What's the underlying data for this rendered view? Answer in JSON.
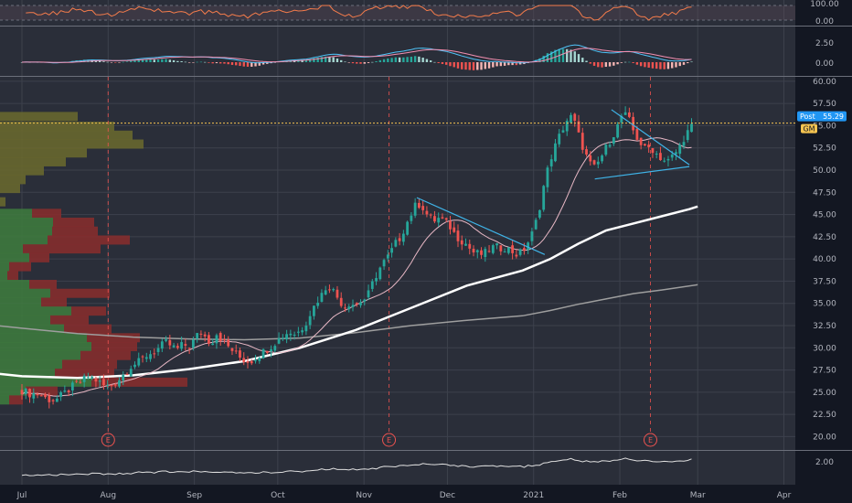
{
  "chart_data": {
    "type": "candlestick",
    "symbol": "GM",
    "colors": {
      "background": "#2a2e39",
      "grid": "#3d414c",
      "up": "#26a69a",
      "down": "#ef5350",
      "sma50": "#e8b8c5",
      "sma100": "#ffffff",
      "sma200": "#9e9e9e",
      "trendline": "#3fb4e8",
      "price_line": "#f5c451",
      "rsi": "#f57c4b",
      "macd": "#4fc3f7",
      "signal": "#f48fb1",
      "vp_up_lower": "#3e7c3e",
      "vp_down_lower": "#8a2d2d",
      "vp_up_upper": "#2a4f8c",
      "vp_down_upper": "#6b6a2e"
    },
    "price_axis": {
      "ticks": [
        "57.50",
        "55.00",
        "52.50",
        "50.00",
        "47.50",
        "45.00",
        "42.50",
        "40.00",
        "37.50",
        "35.00",
        "32.50",
        "30.00",
        "27.50",
        "25.00",
        "22.50",
        "20.00"
      ],
      "top_label": "60.00",
      "range": [
        18.5,
        60.5
      ]
    },
    "x_axis": {
      "labels": [
        "Jul",
        "Aug",
        "Sep",
        "Oct",
        "Nov",
        "Dec",
        "2021",
        "Feb",
        "Mar",
        "Apr"
      ],
      "positions_days": [
        0,
        31,
        62,
        92,
        123,
        153,
        184,
        215,
        243,
        274
      ]
    },
    "last_price": {
      "label": "Post",
      "value": "55.29",
      "symbol_tag": "GM"
    },
    "earnings_markers": [
      {
        "label": "E",
        "day": 31
      },
      {
        "label": "E",
        "day": 132
      },
      {
        "label": "E",
        "day": 226
      }
    ],
    "rsi_panel": {
      "ticks": [
        "100.00",
        "0.00"
      ]
    },
    "macd_panel": {
      "ticks": [
        "2.50",
        "0.00"
      ]
    },
    "bottom_panel": {
      "ticks": [
        "2.00"
      ]
    },
    "price_path": [
      [
        0,
        25.2
      ],
      [
        3,
        24.8
      ],
      [
        6,
        24.9
      ],
      [
        9,
        24.2
      ],
      [
        12,
        24.1
      ],
      [
        15,
        24.8
      ],
      [
        18,
        25.6
      ],
      [
        21,
        26.2
      ],
      [
        24,
        26.8
      ],
      [
        27,
        26.3
      ],
      [
        30,
        25.6
      ],
      [
        33,
        25.9
      ],
      [
        36,
        26.8
      ],
      [
        39,
        27.9
      ],
      [
        42,
        28.4
      ],
      [
        45,
        29.2
      ],
      [
        48,
        29.6
      ],
      [
        50,
        30.2
      ],
      [
        52,
        30.6
      ],
      [
        54,
        30.1
      ],
      [
        56,
        29.9
      ],
      [
        58,
        30.4
      ],
      [
        60,
        30.1
      ],
      [
        62,
        30.9
      ],
      [
        64,
        31.9
      ],
      [
        66,
        31.2
      ],
      [
        68,
        30.5
      ],
      [
        70,
        31.6
      ],
      [
        72,
        30.9
      ],
      [
        74,
        30.2
      ],
      [
        76,
        29.6
      ],
      [
        78,
        29.0
      ],
      [
        80,
        28.6
      ],
      [
        82,
        28.4
      ],
      [
        84,
        28.9
      ],
      [
        86,
        29.4
      ],
      [
        88,
        29.8
      ],
      [
        90,
        30.3
      ],
      [
        92,
        30.9
      ],
      [
        94,
        31.4
      ],
      [
        96,
        31.8
      ],
      [
        98,
        31.6
      ],
      [
        100,
        31.9
      ],
      [
        102,
        32.8
      ],
      [
        104,
        34.1
      ],
      [
        106,
        35.2
      ],
      [
        108,
        36.1
      ],
      [
        110,
        37.2
      ],
      [
        112,
        36.4
      ],
      [
        114,
        35.4
      ],
      [
        116,
        34.6
      ],
      [
        118,
        35.1
      ],
      [
        120,
        34.8
      ],
      [
        122,
        35.3
      ],
      [
        124,
        35.6
      ],
      [
        126,
        37.2
      ],
      [
        128,
        38.6
      ],
      [
        130,
        39.6
      ],
      [
        132,
        40.4
      ],
      [
        134,
        41.6
      ],
      [
        136,
        42.4
      ],
      [
        138,
        43.8
      ],
      [
        140,
        45.1
      ],
      [
        142,
        46.3
      ],
      [
        144,
        45.9
      ],
      [
        146,
        44.8
      ],
      [
        148,
        44.3
      ],
      [
        150,
        44.6
      ],
      [
        152,
        44.2
      ],
      [
        154,
        43.6
      ],
      [
        156,
        42.6
      ],
      [
        158,
        42.1
      ],
      [
        160,
        41.6
      ],
      [
        162,
        40.8
      ],
      [
        164,
        40.6
      ],
      [
        166,
        40.5
      ],
      [
        168,
        41.1
      ],
      [
        170,
        41.4
      ],
      [
        172,
        41.2
      ],
      [
        174,
        41.3
      ],
      [
        176,
        40.9
      ],
      [
        178,
        40.5
      ],
      [
        180,
        40.8
      ],
      [
        182,
        41.9
      ],
      [
        184,
        43.2
      ],
      [
        186,
        45.6
      ],
      [
        188,
        48.8
      ],
      [
        190,
        51.2
      ],
      [
        192,
        52.9
      ],
      [
        194,
        54.4
      ],
      [
        196,
        55.6
      ],
      [
        198,
        56.1
      ],
      [
        200,
        54.1
      ],
      [
        202,
        52.3
      ],
      [
        204,
        50.8
      ],
      [
        206,
        50.2
      ],
      [
        208,
        51.3
      ],
      [
        210,
        52.5
      ],
      [
        212,
        53.6
      ],
      [
        214,
        54.8
      ],
      [
        216,
        56.4
      ],
      [
        218,
        55.9
      ],
      [
        220,
        54.3
      ],
      [
        222,
        53.2
      ],
      [
        224,
        52.4
      ],
      [
        226,
        52.6
      ],
      [
        228,
        51.9
      ],
      [
        230,
        51.3
      ],
      [
        232,
        50.9
      ],
      [
        234,
        51.6
      ],
      [
        236,
        52.3
      ],
      [
        238,
        53.6
      ],
      [
        240,
        54.6
      ],
      [
        242,
        55.29
      ]
    ],
    "sma100_path": [
      [
        -24,
        27.6
      ],
      [
        0,
        26.8
      ],
      [
        20,
        26.6
      ],
      [
        40,
        26.9
      ],
      [
        60,
        27.6
      ],
      [
        80,
        28.5
      ],
      [
        100,
        30.0
      ],
      [
        120,
        32.0
      ],
      [
        140,
        34.5
      ],
      [
        160,
        37.0
      ],
      [
        180,
        38.7
      ],
      [
        190,
        40.0
      ],
      [
        200,
        41.7
      ],
      [
        210,
        43.2
      ],
      [
        220,
        44.0
      ],
      [
        230,
        44.8
      ],
      [
        240,
        45.6
      ],
      [
        243,
        45.9
      ]
    ],
    "sma200_path": [
      [
        -24,
        33.0
      ],
      [
        0,
        32.2
      ],
      [
        20,
        31.6
      ],
      [
        40,
        31.2
      ],
      [
        60,
        31.0
      ],
      [
        80,
        30.9
      ],
      [
        100,
        31.1
      ],
      [
        120,
        31.7
      ],
      [
        140,
        32.5
      ],
      [
        160,
        33.1
      ],
      [
        180,
        33.6
      ],
      [
        190,
        34.2
      ],
      [
        200,
        34.9
      ],
      [
        210,
        35.5
      ],
      [
        220,
        36.1
      ],
      [
        230,
        36.5
      ],
      [
        243,
        37.1
      ]
    ],
    "trendlines": [
      [
        [
          142,
          46.9
        ],
        [
          188,
          40.5
        ]
      ],
      [
        [
          212,
          56.8
        ],
        [
          240,
          50.6
        ]
      ],
      [
        [
          206,
          49.0
        ],
        [
          240,
          50.4
        ]
      ]
    ],
    "volume_profile": [
      {
        "price": 56.0,
        "up": 0,
        "down": 85,
        "zone": "upper"
      },
      {
        "price": 54.9,
        "up": 0,
        "down": 125,
        "zone": "upper"
      },
      {
        "price": 53.9,
        "up": 0,
        "down": 145,
        "zone": "upper"
      },
      {
        "price": 52.9,
        "up": 0,
        "down": 157,
        "zone": "upper"
      },
      {
        "price": 51.9,
        "up": 0,
        "down": 95,
        "zone": "upper"
      },
      {
        "price": 50.9,
        "up": 0,
        "down": 72,
        "zone": "upper"
      },
      {
        "price": 49.9,
        "up": 0,
        "down": 48,
        "zone": "upper"
      },
      {
        "price": 48.9,
        "up": 0,
        "down": 28,
        "zone": "upper"
      },
      {
        "price": 47.9,
        "up": 0,
        "down": 22,
        "zone": "upper"
      },
      {
        "price": 46.4,
        "up": 0,
        "down": 6,
        "zone": "upper"
      },
      {
        "price": 45.1,
        "up": 35,
        "down": 32,
        "zone": "lower"
      },
      {
        "price": 44.1,
        "up": 58,
        "down": 45,
        "zone": "lower"
      },
      {
        "price": 43.1,
        "up": 57,
        "down": 50,
        "zone": "lower"
      },
      {
        "price": 42.1,
        "up": 52,
        "down": 90,
        "zone": "lower"
      },
      {
        "price": 41.1,
        "up": 25,
        "down": 85,
        "zone": "lower"
      },
      {
        "price": 40.1,
        "up": 32,
        "down": 22,
        "zone": "lower"
      },
      {
        "price": 39.1,
        "up": 10,
        "down": 24,
        "zone": "lower"
      },
      {
        "price": 38.1,
        "up": 8,
        "down": 12,
        "zone": "lower"
      },
      {
        "price": 37.1,
        "up": 32,
        "down": 30,
        "zone": "lower"
      },
      {
        "price": 36.1,
        "up": 55,
        "down": 65,
        "zone": "lower"
      },
      {
        "price": 35.1,
        "up": 45,
        "down": 28,
        "zone": "lower"
      },
      {
        "price": 34.1,
        "up": 78,
        "down": 38,
        "zone": "lower"
      },
      {
        "price": 33.1,
        "up": 55,
        "down": 42,
        "zone": "lower"
      },
      {
        "price": 32.1,
        "up": 70,
        "down": 52,
        "zone": "lower"
      },
      {
        "price": 31.1,
        "up": 95,
        "down": 58,
        "zone": "lower"
      },
      {
        "price": 30.1,
        "up": 100,
        "down": 50,
        "zone": "lower"
      },
      {
        "price": 29.1,
        "up": 88,
        "down": 55,
        "zone": "lower"
      },
      {
        "price": 28.1,
        "up": 68,
        "down": 60,
        "zone": "lower"
      },
      {
        "price": 27.1,
        "up": 60,
        "down": 65,
        "zone": "lower"
      },
      {
        "price": 26.1,
        "up": 100,
        "down": 105,
        "zone": "lower"
      },
      {
        "price": 25.1,
        "up": 28,
        "down": 35,
        "zone": "lower"
      },
      {
        "price": 24.1,
        "up": 10,
        "down": 15,
        "zone": "lower"
      }
    ]
  }
}
